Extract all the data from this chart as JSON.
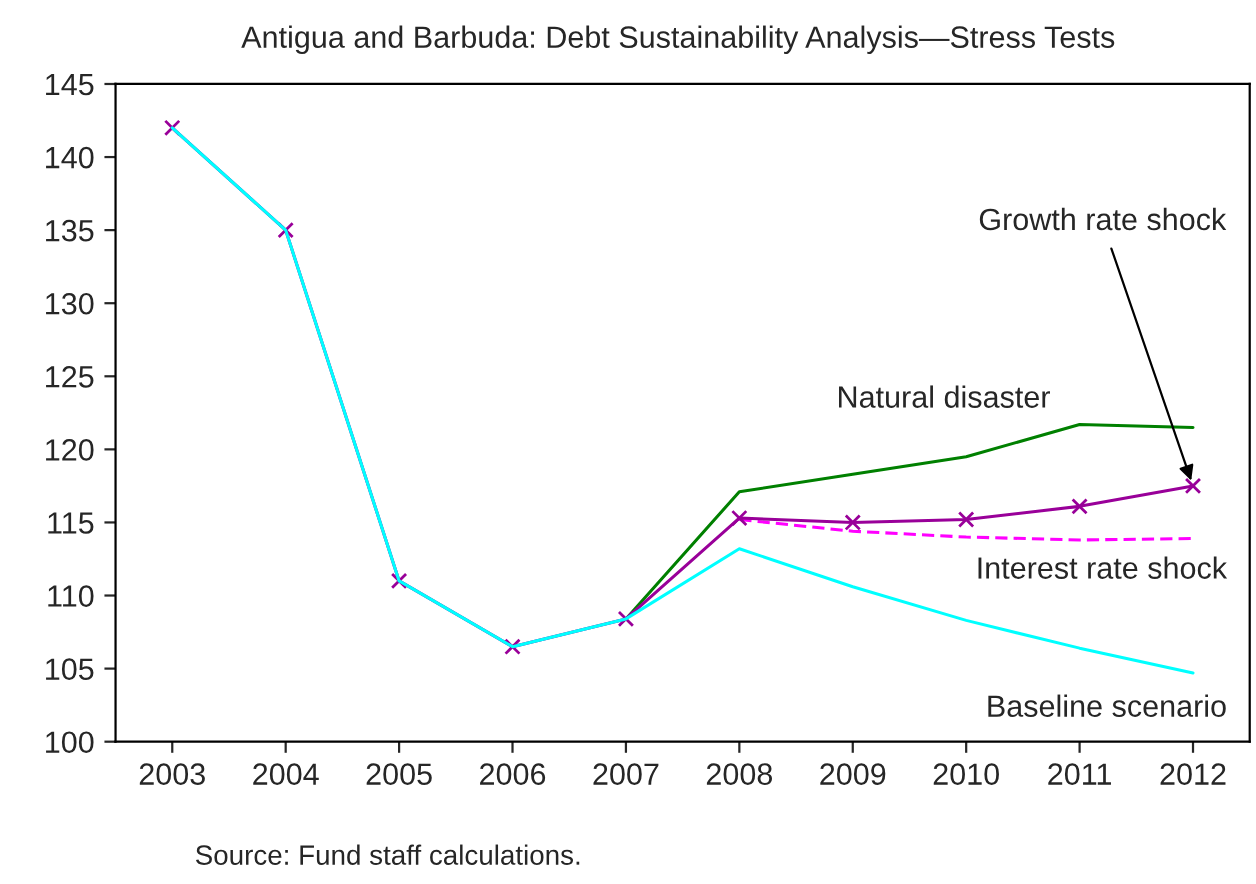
{
  "chart_data": {
    "type": "line",
    "title": "Antigua and Barbuda: Debt Sustainability Analysis—Stress Tests",
    "categories": [
      "2003",
      "2004",
      "2005",
      "2006",
      "2007",
      "2008",
      "2009",
      "2010",
      "2011",
      "2012"
    ],
    "series": [
      {
        "name": "Baseline scenario",
        "color": "#00ffff",
        "values": [
          142,
          135,
          111,
          106.5,
          108.4,
          113.2,
          110.6,
          108.3,
          106.4,
          104.7
        ]
      },
      {
        "name": "Interest rate shock",
        "color": "#ff00ff",
        "line_style": "dashed",
        "values": [
          null,
          null,
          null,
          null,
          null,
          115.2,
          114.4,
          114.0,
          113.8,
          113.9
        ]
      },
      {
        "name": "Natural disaster",
        "color": "#008000",
        "values": [
          null,
          null,
          null,
          null,
          108.4,
          117.1,
          118.3,
          119.5,
          121.7,
          121.5
        ]
      },
      {
        "name": "Growth rate shock",
        "color": "#990099",
        "marker": "cross",
        "values": [
          142,
          135,
          111,
          106.5,
          108.4,
          115.3,
          115.0,
          115.2,
          116.1,
          117.5
        ]
      }
    ],
    "ylim": [
      100,
      145
    ],
    "yticks": [
      100,
      105,
      110,
      115,
      120,
      125,
      130,
      135,
      140,
      145
    ],
    "grid": false,
    "legend": false,
    "annotations": [
      "Source: Fund staff calculations."
    ]
  }
}
